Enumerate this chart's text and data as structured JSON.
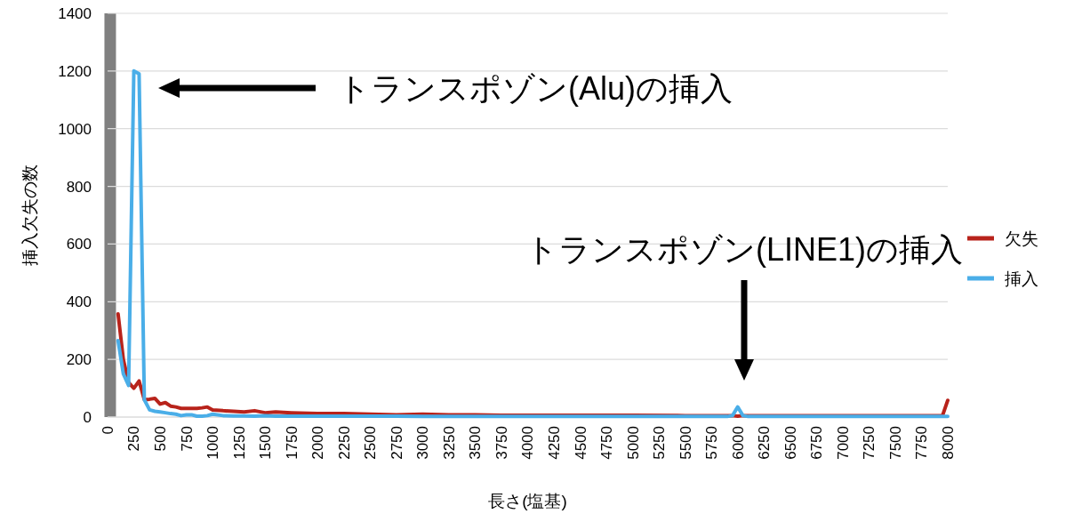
{
  "chart_data": {
    "type": "line",
    "xlabel": "長さ(塩基)",
    "ylabel": "挿入欠失の数",
    "x": [
      100,
      150,
      200,
      250,
      300,
      350,
      400,
      450,
      500,
      550,
      600,
      650,
      700,
      750,
      800,
      850,
      900,
      950,
      1000,
      1100,
      1200,
      1300,
      1400,
      1500,
      1600,
      1750,
      2000,
      2250,
      2500,
      2750,
      3000,
      3250,
      3500,
      3750,
      4000,
      4500,
      5000,
      5500,
      5900,
      5950,
      6000,
      6050,
      6100,
      6500,
      7000,
      7500,
      7950,
      8000
    ],
    "series": [
      {
        "name": "欠失",
        "color": "#b8231b",
        "values": [
          358,
          200,
          120,
          100,
          125,
          60,
          62,
          65,
          45,
          50,
          38,
          35,
          30,
          30,
          30,
          30,
          32,
          35,
          25,
          22,
          20,
          18,
          22,
          15,
          18,
          15,
          12,
          12,
          10,
          8,
          10,
          8,
          8,
          6,
          6,
          6,
          6,
          5,
          5,
          5,
          3,
          5,
          5,
          5,
          5,
          5,
          5,
          58
        ]
      },
      {
        "name": "挿入",
        "color": "#4aaee8",
        "values": [
          265,
          150,
          110,
          1200,
          1190,
          60,
          25,
          20,
          18,
          15,
          12,
          10,
          5,
          8,
          8,
          3,
          3,
          5,
          10,
          5,
          4,
          4,
          3,
          5,
          3,
          3,
          3,
          3,
          3,
          3,
          2,
          2,
          2,
          2,
          2,
          2,
          2,
          2,
          2,
          5,
          35,
          5,
          2,
          2,
          2,
          2,
          2,
          2
        ]
      }
    ],
    "xlim": [
      0,
      8000
    ],
    "xticks": [
      0,
      250,
      500,
      750,
      1000,
      1250,
      1500,
      1750,
      2000,
      2250,
      2500,
      2750,
      3000,
      3250,
      3500,
      3750,
      4000,
      4250,
      4500,
      4750,
      5000,
      5250,
      5500,
      5750,
      6000,
      6250,
      6500,
      6750,
      7000,
      7250,
      7500,
      7750,
      8000
    ],
    "ylim": [
      0,
      1400
    ],
    "yticks": [
      0,
      200,
      400,
      600,
      800,
      1000,
      1200,
      1400
    ],
    "grid": "y",
    "legend": "right",
    "marker": "none",
    "line_style": "solid",
    "bands": [
      {
        "axis": "x",
        "from": -30,
        "to": 80,
        "color": "#808080"
      }
    ],
    "annotations": [
      "トランスポゾン(Alu)の挿入",
      "トランスポゾン(LINE1)の挿入"
    ]
  }
}
